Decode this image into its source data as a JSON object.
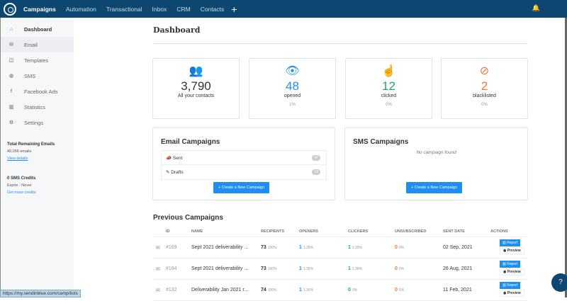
{
  "topnav": {
    "items": [
      "Campaigns",
      "Automation",
      "Transactional",
      "Inbox",
      "CRM",
      "Contacts"
    ],
    "add": "+",
    "bell": "bell-icon"
  },
  "sidebar": {
    "items": [
      {
        "label": "Dashboard",
        "icon": "⌂"
      },
      {
        "label": "Email",
        "icon": "✉"
      },
      {
        "label": "Templates",
        "icon": "◫"
      },
      {
        "label": "SMS",
        "icon": "◍"
      },
      {
        "label": "Facebook Ads",
        "icon": "f"
      },
      {
        "label": "Statistics",
        "icon": "▥"
      },
      {
        "label": "Settings",
        "icon": "⚙"
      }
    ],
    "emails_title": "Total Remaining Emails",
    "emails_count": "40,056 emails",
    "view_details": "View details",
    "sms_title": "0 SMS Credits",
    "sms_expire": "Expire : Never",
    "get_credits": "Get more credits"
  },
  "status_url": "https://my.sendinblue.com/camp/lists",
  "title": "Dashboard",
  "stats": [
    {
      "icon": "👥",
      "value": "3,790",
      "label": "All your contacts",
      "pct": "",
      "color": "#333333"
    },
    {
      "icon": "👁",
      "value": "48",
      "label": "opened",
      "pct": "1%",
      "color": "#1f8ef1"
    },
    {
      "icon": "☝",
      "value": "12",
      "label": "clicked",
      "pct": "0%",
      "color": "#25a36f"
    },
    {
      "icon": "⊘",
      "value": "2",
      "label": "blacklisted",
      "pct": "0%",
      "color": "#f0763a"
    }
  ],
  "email_campaigns": {
    "title": "Email Campaigns",
    "items": [
      {
        "label": "Sent",
        "count": "47"
      },
      {
        "label": "Drafts",
        "count": "19"
      }
    ],
    "button": "+ Create a New Campaign"
  },
  "sms_campaigns": {
    "title": "SMS Campaigns",
    "empty": "No campaign found",
    "button": "+ Create a New Campaign"
  },
  "previous": {
    "title": "Previous Campaigns",
    "headers": [
      "ID",
      "NAME",
      "RECIPIENTS",
      "OPENERS",
      "CLICKERS",
      "UNSUBSCRIBED",
      "SENT DATE",
      "ACTIONS"
    ],
    "rows": [
      {
        "id": "#169",
        "name": "Sept 2021 deliverability ...",
        "recipients": "73",
        "recipients_pct": "100%",
        "openers": "1",
        "openers_pct": "1.39%",
        "clickers": "1",
        "clickers_pct": "1.39%",
        "unsub": "0",
        "unsub_pct": "0%",
        "date": "02 Sep, 2021"
      },
      {
        "id": "#164",
        "name": "Sept 2021 deliverability ...",
        "recipients": "73",
        "recipients_pct": "100%",
        "openers": "1",
        "openers_pct": "1.39%",
        "clickers": "1",
        "clickers_pct": "1.39%",
        "unsub": "0",
        "unsub_pct": "0%",
        "date": "26 Aug, 2021"
      },
      {
        "id": "#132",
        "name": "Deliverability Jan 2021 r...",
        "recipients": "74",
        "recipients_pct": "100%",
        "openers": "1",
        "openers_pct": "1.39%",
        "clickers": "0",
        "clickers_pct": "0%",
        "unsub": "0",
        "unsub_pct": "0%",
        "date": "11 Feb, 2021"
      }
    ],
    "report": "▥ Report",
    "preview": "◉ Preview"
  },
  "help": "?"
}
